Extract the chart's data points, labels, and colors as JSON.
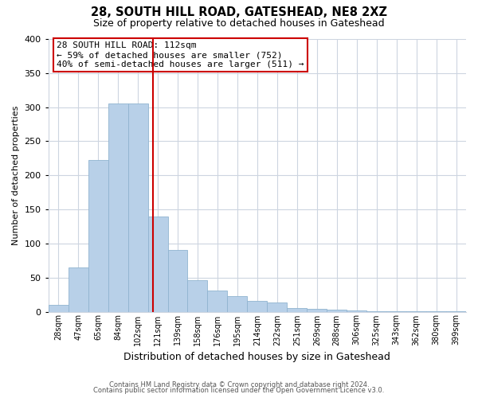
{
  "title": "28, SOUTH HILL ROAD, GATESHEAD, NE8 2XZ",
  "subtitle": "Size of property relative to detached houses in Gateshead",
  "xlabel": "Distribution of detached houses by size in Gateshead",
  "ylabel": "Number of detached properties",
  "bin_labels": [
    "28sqm",
    "47sqm",
    "65sqm",
    "84sqm",
    "102sqm",
    "121sqm",
    "139sqm",
    "158sqm",
    "176sqm",
    "195sqm",
    "214sqm",
    "232sqm",
    "251sqm",
    "269sqm",
    "288sqm",
    "306sqm",
    "325sqm",
    "343sqm",
    "362sqm",
    "380sqm",
    "399sqm"
  ],
  "bar_heights": [
    10,
    65,
    222,
    305,
    305,
    140,
    90,
    46,
    31,
    23,
    16,
    13,
    5,
    4,
    3,
    2,
    1,
    1,
    1,
    1,
    1
  ],
  "bar_color": "#b8d0e8",
  "bar_edge_color": "#90b4d0",
  "vline_color": "#cc0000",
  "vline_x_data": 4.75,
  "ylim": [
    0,
    400
  ],
  "yticks": [
    0,
    50,
    100,
    150,
    200,
    250,
    300,
    350,
    400
  ],
  "annotation_title": "28 SOUTH HILL ROAD: 112sqm",
  "annotation_line1": "← 59% of detached houses are smaller (752)",
  "annotation_line2": "40% of semi-detached houses are larger (511) →",
  "footer_line1": "Contains HM Land Registry data © Crown copyright and database right 2024.",
  "footer_line2": "Contains public sector information licensed under the Open Government Licence v3.0.",
  "background_color": "#ffffff",
  "grid_color": "#cdd5e0"
}
